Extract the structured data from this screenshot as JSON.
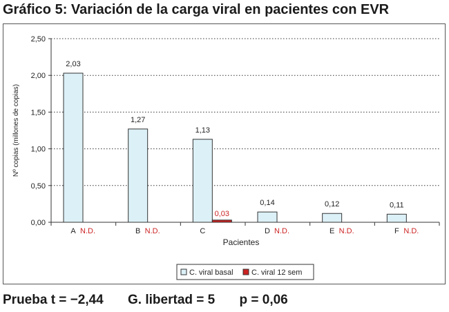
{
  "title": "Gráfico 5: Variación de la carga viral en pacientes con EVR",
  "footer": {
    "stat_t": "Prueba t = −2,44",
    "stat_df": "G. libertad = 5",
    "stat_p": "p = 0,06"
  },
  "colors": {
    "basal": "#dcf0f7",
    "week12": "#cc2222",
    "nd_text": "#cc2222"
  },
  "chart_data": {
    "type": "bar",
    "xlabel": "Pacientes",
    "ylabel": "Nº copias (millones de copias)",
    "ylim": [
      0,
      2.5
    ],
    "yticks": [
      "0,00",
      "0,50",
      "1,00",
      "1,50",
      "2,00",
      "2,50"
    ],
    "ytick_values": [
      0,
      0.5,
      1,
      1.5,
      2,
      2.5
    ],
    "grid": true,
    "legend_position": "bottom",
    "categories": [
      "A",
      "B",
      "C",
      "D",
      "E",
      "F"
    ],
    "series": [
      {
        "name": "C. viral basal",
        "values": [
          2.03,
          1.27,
          1.13,
          0.14,
          0.12,
          0.11
        ],
        "labels": [
          "2,03",
          "1,27",
          "1,13",
          "0,14",
          "0,12",
          "0,11"
        ]
      },
      {
        "name": "C. viral 12 sem",
        "values": [
          null,
          null,
          0.03,
          null,
          null,
          null
        ],
        "labels": [
          "N.D.",
          "N.D.",
          "0,03",
          "N.D.",
          "N.D.",
          "N.D."
        ]
      }
    ]
  }
}
